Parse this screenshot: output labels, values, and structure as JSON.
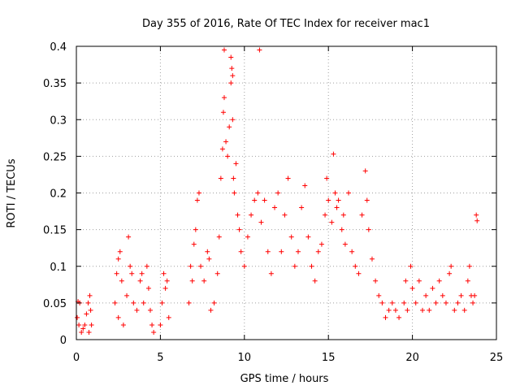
{
  "chart_data": {
    "type": "scatter",
    "title": "Day 355 of 2016, Rate Of TEC Index for receiver mac1",
    "xlabel": "GPS time / hours",
    "ylabel": "ROTI / TECUs",
    "xlim": [
      0,
      25
    ],
    "ylim": [
      0,
      0.4
    ],
    "x_ticks": [
      0,
      5,
      10,
      15,
      20,
      25
    ],
    "y_ticks": [
      0,
      0.05,
      0.1,
      0.15,
      0.2,
      0.25,
      0.3,
      0.35,
      0.4
    ],
    "x_tick_labels": [
      "0",
      "5",
      "10",
      "15",
      "20",
      "25"
    ],
    "y_tick_labels": [
      "0",
      "0.05",
      "0.1",
      "0.15",
      "0.2",
      "0.25",
      "0.3",
      "0.35",
      "0.4"
    ],
    "grid": true,
    "marker": "+",
    "series": [
      {
        "name": "ROTI",
        "color": "#ff0000",
        "points": [
          [
            0.1,
            0.052
          ],
          [
            0.2,
            0.05
          ],
          [
            0.15,
            0.02
          ],
          [
            0.3,
            0.01
          ],
          [
            0.05,
            0.03
          ],
          [
            0.4,
            0.015
          ],
          [
            0.5,
            0.02
          ],
          [
            0.6,
            0.035
          ],
          [
            0.7,
            0.05
          ],
          [
            0.8,
            0.06
          ],
          [
            0.85,
            0.04
          ],
          [
            0.9,
            0.02
          ],
          [
            0.75,
            0.01
          ],
          [
            2.3,
            0.05
          ],
          [
            2.4,
            0.09
          ],
          [
            2.5,
            0.11
          ],
          [
            2.6,
            0.12
          ],
          [
            2.7,
            0.08
          ],
          [
            2.5,
            0.03
          ],
          [
            2.8,
            0.02
          ],
          [
            3.0,
            0.06
          ],
          [
            3.1,
            0.14
          ],
          [
            3.2,
            0.1
          ],
          [
            3.3,
            0.09
          ],
          [
            3.4,
            0.05
          ],
          [
            3.6,
            0.04
          ],
          [
            3.8,
            0.08
          ],
          [
            3.9,
            0.09
          ],
          [
            4.0,
            0.05
          ],
          [
            4.2,
            0.1
          ],
          [
            4.3,
            0.07
          ],
          [
            4.4,
            0.04
          ],
          [
            4.5,
            0.02
          ],
          [
            4.6,
            0.01
          ],
          [
            5.0,
            0.02
          ],
          [
            5.1,
            0.05
          ],
          [
            5.2,
            0.09
          ],
          [
            5.3,
            0.07
          ],
          [
            5.4,
            0.08
          ],
          [
            5.5,
            0.03
          ],
          [
            6.7,
            0.05
          ],
          [
            6.8,
            0.1
          ],
          [
            6.9,
            0.08
          ],
          [
            7.0,
            0.13
          ],
          [
            7.1,
            0.15
          ],
          [
            7.2,
            0.19
          ],
          [
            7.3,
            0.2
          ],
          [
            7.4,
            0.1
          ],
          [
            7.6,
            0.08
          ],
          [
            7.8,
            0.12
          ],
          [
            7.9,
            0.11
          ],
          [
            8.0,
            0.04
          ],
          [
            8.2,
            0.05
          ],
          [
            8.4,
            0.09
          ],
          [
            8.5,
            0.14
          ],
          [
            8.6,
            0.22
          ],
          [
            8.7,
            0.26
          ],
          [
            8.75,
            0.31
          ],
          [
            8.8,
            0.33
          ],
          [
            8.9,
            0.27
          ],
          [
            9.0,
            0.25
          ],
          [
            9.1,
            0.29
          ],
          [
            9.2,
            0.35
          ],
          [
            9.25,
            0.37
          ],
          [
            9.3,
            0.3
          ],
          [
            9.35,
            0.22
          ],
          [
            9.4,
            0.2
          ],
          [
            9.5,
            0.24
          ],
          [
            9.6,
            0.17
          ],
          [
            9.7,
            0.15
          ],
          [
            9.8,
            0.12
          ],
          [
            8.8,
            0.395
          ],
          [
            9.2,
            0.385
          ],
          [
            9.3,
            0.36
          ],
          [
            10.9,
            0.395
          ],
          [
            10.0,
            0.1
          ],
          [
            10.2,
            0.14
          ],
          [
            10.4,
            0.17
          ],
          [
            10.6,
            0.19
          ],
          [
            10.8,
            0.2
          ],
          [
            11.0,
            0.16
          ],
          [
            11.2,
            0.19
          ],
          [
            11.4,
            0.12
          ],
          [
            11.6,
            0.09
          ],
          [
            11.8,
            0.18
          ],
          [
            12.0,
            0.2
          ],
          [
            12.2,
            0.12
          ],
          [
            12.4,
            0.17
          ],
          [
            12.6,
            0.22
          ],
          [
            12.8,
            0.14
          ],
          [
            13.0,
            0.1
          ],
          [
            13.2,
            0.12
          ],
          [
            13.4,
            0.18
          ],
          [
            13.6,
            0.21
          ],
          [
            13.8,
            0.14
          ],
          [
            14.0,
            0.1
          ],
          [
            14.2,
            0.08
          ],
          [
            14.4,
            0.12
          ],
          [
            14.6,
            0.13
          ],
          [
            14.8,
            0.17
          ],
          [
            14.9,
            0.22
          ],
          [
            15.0,
            0.19
          ],
          [
            15.2,
            0.16
          ],
          [
            15.3,
            0.253
          ],
          [
            15.4,
            0.2
          ],
          [
            15.5,
            0.18
          ],
          [
            15.6,
            0.19
          ],
          [
            15.8,
            0.15
          ],
          [
            15.9,
            0.17
          ],
          [
            16.0,
            0.13
          ],
          [
            16.2,
            0.2
          ],
          [
            16.4,
            0.12
          ],
          [
            16.6,
            0.1
          ],
          [
            16.8,
            0.09
          ],
          [
            17.0,
            0.17
          ],
          [
            17.2,
            0.23
          ],
          [
            17.3,
            0.19
          ],
          [
            17.4,
            0.15
          ],
          [
            17.6,
            0.11
          ],
          [
            17.8,
            0.08
          ],
          [
            18.0,
            0.06
          ],
          [
            18.2,
            0.05
          ],
          [
            18.4,
            0.03
          ],
          [
            18.6,
            0.04
          ],
          [
            18.8,
            0.05
          ],
          [
            19.0,
            0.04
          ],
          [
            19.2,
            0.03
          ],
          [
            19.5,
            0.05
          ],
          [
            19.6,
            0.08
          ],
          [
            19.7,
            0.04
          ],
          [
            19.9,
            0.1
          ],
          [
            20.0,
            0.07
          ],
          [
            20.2,
            0.05
          ],
          [
            20.4,
            0.08
          ],
          [
            20.6,
            0.04
          ],
          [
            20.8,
            0.06
          ],
          [
            21.0,
            0.04
          ],
          [
            21.2,
            0.07
          ],
          [
            21.4,
            0.05
          ],
          [
            21.6,
            0.08
          ],
          [
            21.8,
            0.06
          ],
          [
            22.0,
            0.05
          ],
          [
            22.2,
            0.09
          ],
          [
            22.3,
            0.1
          ],
          [
            22.5,
            0.04
          ],
          [
            22.7,
            0.05
          ],
          [
            22.9,
            0.06
          ],
          [
            23.1,
            0.04
          ],
          [
            23.3,
            0.08
          ],
          [
            23.4,
            0.1
          ],
          [
            23.5,
            0.06
          ],
          [
            23.6,
            0.05
          ],
          [
            23.7,
            0.06
          ],
          [
            23.8,
            0.17
          ],
          [
            23.85,
            0.162
          ]
        ]
      }
    ]
  }
}
